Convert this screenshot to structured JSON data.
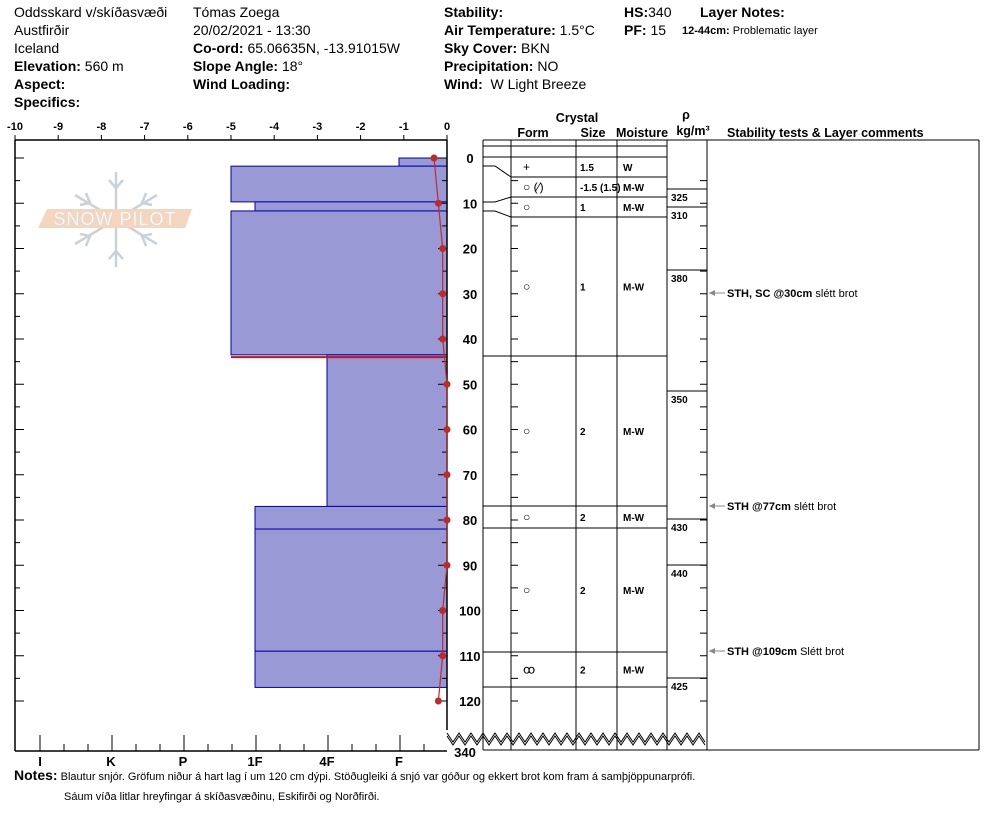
{
  "header": {
    "location": "Oddsskard v/skíðasvæði",
    "region": "Austfirðir",
    "country": "Iceland",
    "elevation_label": "Elevation:",
    "elevation": "560 m",
    "aspect_label": "Aspect:",
    "specifics_label": "Specifics:",
    "observer": "Tómas Zoega",
    "datetime": "20/02/2021 - 13:30",
    "coord_label": "Co-ord:",
    "coord": "65.06635N, -13.91015W",
    "slope_label": "Slope Angle:",
    "slope": "18°",
    "wind_loading_label": "Wind Loading:",
    "stability_label": "Stability:",
    "air_temp_label": "Air Temperature:",
    "air_temp": "1.5°C",
    "sky_label": "Sky Cover:",
    "sky": "BKN",
    "precip_label": "Precipitation:",
    "precip": "NO",
    "wind_label": "Wind:",
    "wind": "W Light Breeze",
    "hs_label": "HS:",
    "hs": "340",
    "pf_label": "PF:",
    "pf": "15",
    "layer_notes_label": "Layer Notes:",
    "layer_note_range": "12-44cm:",
    "layer_note_text": "Problematic layer"
  },
  "logo_text": "SNOW PILOT",
  "table_headers": {
    "crystal": "Crystal",
    "form": "Form",
    "size": "Size",
    "moisture": "Moisture",
    "rho": "ρ",
    "density_unit": "kg/m³",
    "comments": "Stability tests & Layer comments"
  },
  "chart_data": {
    "type": "snow-profile",
    "temperature_axis": {
      "label_ticks": [
        "-10",
        "-9",
        "-8",
        "-7",
        "-6",
        "-5",
        "-4",
        "-3",
        "-2",
        "-1",
        "0"
      ],
      "range": [
        -10,
        0
      ]
    },
    "hardness_axis": {
      "ticks": [
        "I",
        "K",
        "P",
        "1F",
        "4F",
        "F"
      ]
    },
    "depth_axis": {
      "ticks": [
        "0",
        "10",
        "20",
        "30",
        "40",
        "50",
        "60",
        "70",
        "80",
        "90",
        "100",
        "110",
        "120"
      ],
      "range": [
        0,
        120
      ],
      "total_label": "340"
    },
    "hardness_layers": [
      {
        "top": 0,
        "bottom": 1.8,
        "hardness": "F"
      },
      {
        "top": 1.8,
        "bottom": 9.7,
        "hardness": "1F+"
      },
      {
        "top": 9.7,
        "bottom": 11.7,
        "hardness": "1F"
      },
      {
        "top": 11.7,
        "bottom": 43.5,
        "hardness": "1F+"
      },
      {
        "top": 43.5,
        "bottom": 77,
        "hardness": "4F"
      },
      {
        "top": 77,
        "bottom": 82,
        "hardness": "1F"
      },
      {
        "top": 82,
        "bottom": 109,
        "hardness": "1F"
      },
      {
        "top": 109,
        "bottom": 117,
        "hardness": "1F"
      }
    ],
    "problem_layer_depth": 44,
    "temperature_profile": {
      "depth": [
        0,
        10,
        20,
        30,
        40,
        50,
        60,
        70,
        80,
        90,
        100,
        110,
        120
      ],
      "temp": [
        -0.3,
        -0.2,
        -0.1,
        -0.1,
        -0.1,
        0,
        0,
        0,
        0,
        0,
        -0.1,
        -0.1,
        -0.2
      ]
    },
    "colors": {
      "layer_fill": "#9999d5",
      "layer_edge": "#0000aa",
      "temp": "#c0282a"
    }
  },
  "crystal_rows": [
    {
      "form": "+",
      "size": "1.5",
      "moisture": "W"
    },
    {
      "form": "○ (⁄)",
      "size": "-1.5 (1.5)",
      "moisture": "M-W"
    },
    {
      "form": "○",
      "size": "1",
      "moisture": "M-W"
    },
    {
      "form": "○",
      "size": "1",
      "moisture": "M-W"
    },
    {
      "form": "○",
      "size": "2",
      "moisture": "M-W"
    },
    {
      "form": "○",
      "size": "2",
      "moisture": "M-W"
    },
    {
      "form": "○",
      "size": "2",
      "moisture": "M-W"
    },
    {
      "form": "ꝏ",
      "size": "2",
      "moisture": "M-W"
    }
  ],
  "densities": [
    "325",
    "310",
    "380",
    "350",
    "430",
    "440",
    "425"
  ],
  "comments": [
    {
      "test": "STH, SC @30cm",
      "text": "slétt brot"
    },
    {
      "test": "STH @77cm",
      "text": "slétt brot"
    },
    {
      "test": "STH @109cm",
      "text": "Slétt brot"
    }
  ],
  "notes": {
    "label": "Notes:",
    "line1": "Blautur snjór. Gröfum niður á hart lag í um 120 cm dýpi. Stöðugleiki á snjó var góður og ekkert brot kom fram á samþjöppunarprófi.",
    "line2": "Sáum víða litlar hreyfingar á skíðasvæðinu, Eskifirði og Norðfirði."
  }
}
